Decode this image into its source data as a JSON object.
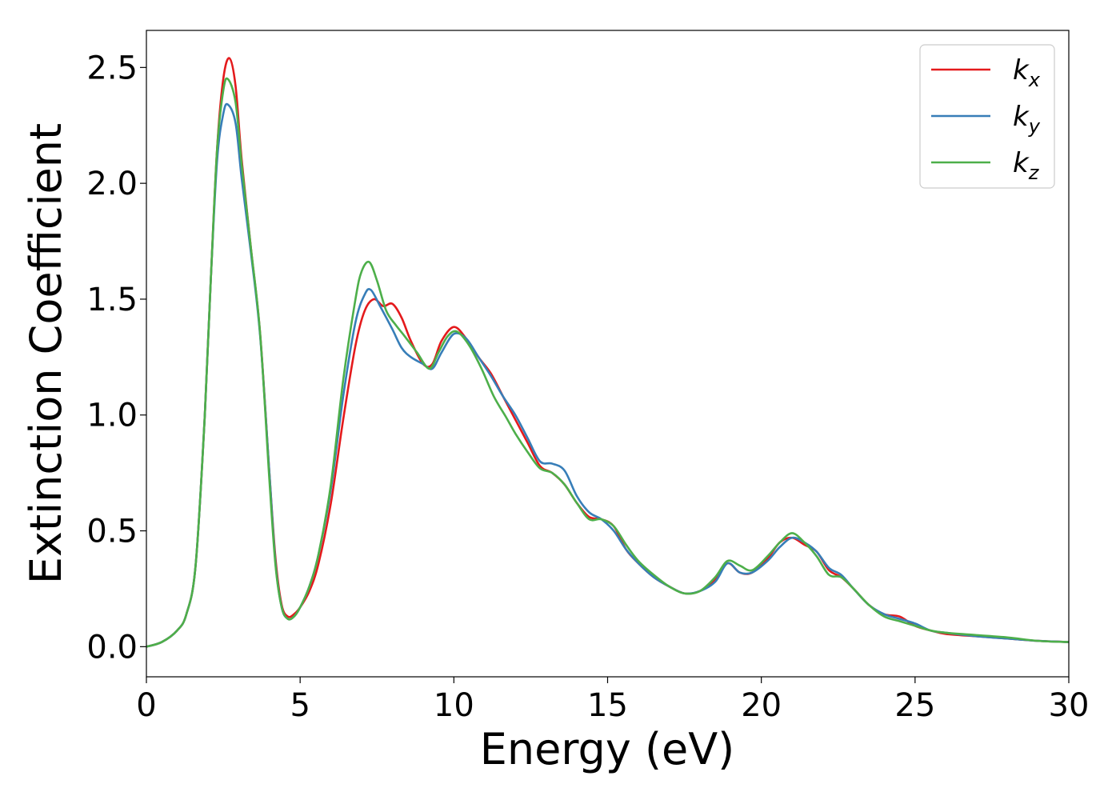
{
  "chart_data": {
    "type": "line",
    "title": "",
    "xlabel": "Energy (eV)",
    "ylabel": "Extinction Coefficient",
    "xlim": [
      0,
      30
    ],
    "ylim": [
      -0.13,
      2.66
    ],
    "xticks": [
      0,
      5,
      10,
      15,
      20,
      25,
      30
    ],
    "xtick_labels": [
      "0",
      "5",
      "10",
      "15",
      "20",
      "25",
      "30"
    ],
    "yticks": [
      0.0,
      0.5,
      1.0,
      1.5,
      2.0,
      2.5
    ],
    "ytick_labels": [
      "0.0",
      "0.5",
      "1.0",
      "1.5",
      "2.0",
      "2.5"
    ],
    "grid": false,
    "legend_position": "top-right",
    "series": [
      {
        "name": "k",
        "subscript": "x",
        "color": "#e41a1c",
        "x": [
          0,
          0.5,
          1.0,
          1.3,
          1.6,
          1.9,
          2.1,
          2.3,
          2.5,
          2.7,
          2.9,
          3.1,
          3.4,
          3.7,
          4.0,
          4.2,
          4.4,
          4.6,
          4.8,
          5.0,
          5.3,
          5.6,
          6.0,
          6.4,
          6.8,
          7.1,
          7.4,
          7.7,
          8.0,
          8.3,
          8.6,
          9.0,
          9.3,
          9.6,
          10.0,
          10.4,
          10.8,
          11.2,
          11.6,
          12.0,
          12.4,
          12.8,
          13.2,
          13.6,
          14.0,
          14.4,
          14.8,
          15.2,
          15.6,
          16.0,
          16.5,
          17.0,
          17.5,
          18.0,
          18.5,
          18.9,
          19.3,
          19.7,
          20.2,
          20.6,
          21.0,
          21.4,
          21.8,
          22.2,
          22.6,
          23.0,
          23.5,
          24.0,
          24.5,
          25.0,
          25.5,
          26.0,
          27.0,
          28.0,
          29.0,
          30.0
        ],
        "y": [
          0.0,
          0.02,
          0.07,
          0.14,
          0.35,
          1.0,
          1.6,
          2.15,
          2.45,
          2.54,
          2.42,
          2.1,
          1.72,
          1.35,
          0.75,
          0.38,
          0.18,
          0.13,
          0.14,
          0.17,
          0.24,
          0.36,
          0.62,
          0.98,
          1.3,
          1.45,
          1.5,
          1.47,
          1.48,
          1.42,
          1.32,
          1.22,
          1.22,
          1.32,
          1.38,
          1.33,
          1.25,
          1.18,
          1.08,
          0.98,
          0.88,
          0.78,
          0.75,
          0.7,
          0.62,
          0.56,
          0.55,
          0.52,
          0.42,
          0.36,
          0.3,
          0.26,
          0.23,
          0.24,
          0.29,
          0.36,
          0.32,
          0.32,
          0.38,
          0.45,
          0.47,
          0.44,
          0.41,
          0.33,
          0.3,
          0.25,
          0.18,
          0.14,
          0.13,
          0.09,
          0.07,
          0.055,
          0.045,
          0.035,
          0.025,
          0.02
        ]
      },
      {
        "name": "k",
        "subscript": "y",
        "color": "#377eb8",
        "x": [
          0,
          0.5,
          1.0,
          1.3,
          1.6,
          1.9,
          2.1,
          2.3,
          2.5,
          2.65,
          2.9,
          3.1,
          3.4,
          3.7,
          4.0,
          4.2,
          4.4,
          4.6,
          4.8,
          5.0,
          5.3,
          5.6,
          6.0,
          6.4,
          6.8,
          7.1,
          7.3,
          7.6,
          8.0,
          8.3,
          8.6,
          9.0,
          9.3,
          9.6,
          10.0,
          10.4,
          10.8,
          11.2,
          11.6,
          12.0,
          12.4,
          12.8,
          13.2,
          13.6,
          14.0,
          14.4,
          14.8,
          15.2,
          15.6,
          16.0,
          16.5,
          17.0,
          17.5,
          18.0,
          18.5,
          18.9,
          19.3,
          19.7,
          20.2,
          20.6,
          21.0,
          21.4,
          21.8,
          22.2,
          22.6,
          23.0,
          23.5,
          24.0,
          24.5,
          25.0,
          25.5,
          26.0,
          27.0,
          28.0,
          29.0,
          30.0
        ],
        "y": [
          0.0,
          0.02,
          0.07,
          0.14,
          0.35,
          1.0,
          1.6,
          2.1,
          2.3,
          2.34,
          2.26,
          2.02,
          1.7,
          1.34,
          0.75,
          0.36,
          0.17,
          0.12,
          0.13,
          0.17,
          0.26,
          0.4,
          0.68,
          1.08,
          1.4,
          1.52,
          1.54,
          1.47,
          1.37,
          1.29,
          1.25,
          1.22,
          1.2,
          1.27,
          1.35,
          1.33,
          1.25,
          1.17,
          1.08,
          1.0,
          0.9,
          0.8,
          0.79,
          0.76,
          0.65,
          0.58,
          0.55,
          0.5,
          0.42,
          0.36,
          0.3,
          0.26,
          0.23,
          0.24,
          0.28,
          0.36,
          0.32,
          0.32,
          0.37,
          0.43,
          0.47,
          0.45,
          0.41,
          0.34,
          0.31,
          0.25,
          0.18,
          0.14,
          0.12,
          0.1,
          0.07,
          0.06,
          0.045,
          0.035,
          0.025,
          0.02
        ]
      },
      {
        "name": "k",
        "subscript": "z",
        "color": "#4daf4a",
        "x": [
          0,
          0.5,
          1.0,
          1.3,
          1.6,
          1.9,
          2.1,
          2.3,
          2.5,
          2.65,
          2.9,
          3.1,
          3.4,
          3.7,
          4.0,
          4.2,
          4.4,
          4.6,
          4.8,
          5.0,
          5.3,
          5.6,
          6.0,
          6.4,
          6.8,
          7.0,
          7.25,
          7.5,
          7.8,
          8.1,
          8.4,
          8.8,
          9.2,
          9.5,
          9.8,
          10.1,
          10.5,
          10.9,
          11.3,
          11.7,
          12.0,
          12.4,
          12.8,
          13.2,
          13.6,
          14.0,
          14.4,
          14.8,
          15.2,
          15.6,
          16.0,
          16.5,
          17.0,
          17.5,
          18.0,
          18.5,
          18.9,
          19.3,
          19.7,
          20.2,
          20.6,
          21.0,
          21.4,
          21.8,
          22.2,
          22.6,
          23.0,
          23.5,
          24.0,
          24.5,
          25.0,
          25.5,
          26.0,
          27.0,
          28.0,
          29.0,
          30.0
        ],
        "y": [
          0.0,
          0.02,
          0.07,
          0.14,
          0.35,
          1.0,
          1.6,
          2.15,
          2.4,
          2.45,
          2.35,
          2.08,
          1.72,
          1.35,
          0.72,
          0.35,
          0.17,
          0.12,
          0.13,
          0.17,
          0.26,
          0.4,
          0.7,
          1.15,
          1.5,
          1.62,
          1.66,
          1.58,
          1.45,
          1.39,
          1.34,
          1.27,
          1.2,
          1.27,
          1.34,
          1.36,
          1.3,
          1.2,
          1.08,
          0.99,
          0.92,
          0.84,
          0.77,
          0.75,
          0.7,
          0.62,
          0.55,
          0.55,
          0.52,
          0.44,
          0.37,
          0.31,
          0.26,
          0.23,
          0.24,
          0.3,
          0.37,
          0.35,
          0.33,
          0.39,
          0.45,
          0.49,
          0.45,
          0.39,
          0.31,
          0.3,
          0.25,
          0.18,
          0.13,
          0.11,
          0.09,
          0.07,
          0.06,
          0.05,
          0.04,
          0.025,
          0.02
        ]
      }
    ]
  }
}
